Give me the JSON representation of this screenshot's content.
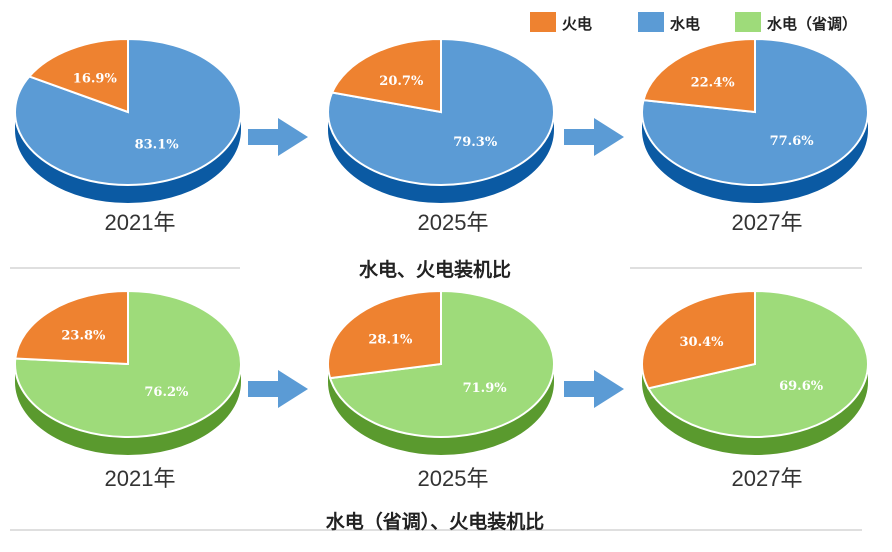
{
  "colors": {
    "thermal": "#ee8230",
    "thermal_dark": "#b85d16",
    "hydro": "#5b9bd5",
    "hydro_dark": "#0b5aa3",
    "hydro_prov": "#9edb7a",
    "hydro_prov_dark": "#5a9a2e",
    "arrow": "#5b9bd5",
    "divider": "#bfbfbf"
  },
  "legend": [
    {
      "label": "火电",
      "color": "#ee8230"
    },
    {
      "label": "水电",
      "color": "#5b9bd5"
    },
    {
      "label": "水电（省调）",
      "color": "#9edb7a"
    }
  ],
  "chart_data": [
    {
      "type": "pie",
      "title": "水电、火电装机比",
      "series_names": [
        "火电",
        "水电"
      ],
      "groups": [
        {
          "year": "2021年",
          "values": [
            16.9,
            83.1
          ],
          "labels": [
            "16.9%",
            "83.1%"
          ]
        },
        {
          "year": "2025年",
          "values": [
            20.7,
            79.3
          ],
          "labels": [
            "20.7%",
            "79.3%"
          ]
        },
        {
          "year": "2027年",
          "values": [
            22.4,
            77.6
          ],
          "labels": [
            "22.4%",
            "77.6%"
          ]
        }
      ]
    },
    {
      "type": "pie",
      "title": "水电（省调）、火电装机比",
      "series_names": [
        "火电",
        "水电（省调）"
      ],
      "groups": [
        {
          "year": "2021年",
          "values": [
            23.8,
            76.2
          ],
          "labels": [
            "23.8%",
            "76.2%"
          ]
        },
        {
          "year": "2025年",
          "values": [
            28.1,
            71.9
          ],
          "labels": [
            "28.1%",
            "71.9%"
          ]
        },
        {
          "year": "2027年",
          "values": [
            30.4,
            69.6
          ],
          "labels": [
            "30.4%",
            "69.6%"
          ]
        }
      ]
    }
  ]
}
